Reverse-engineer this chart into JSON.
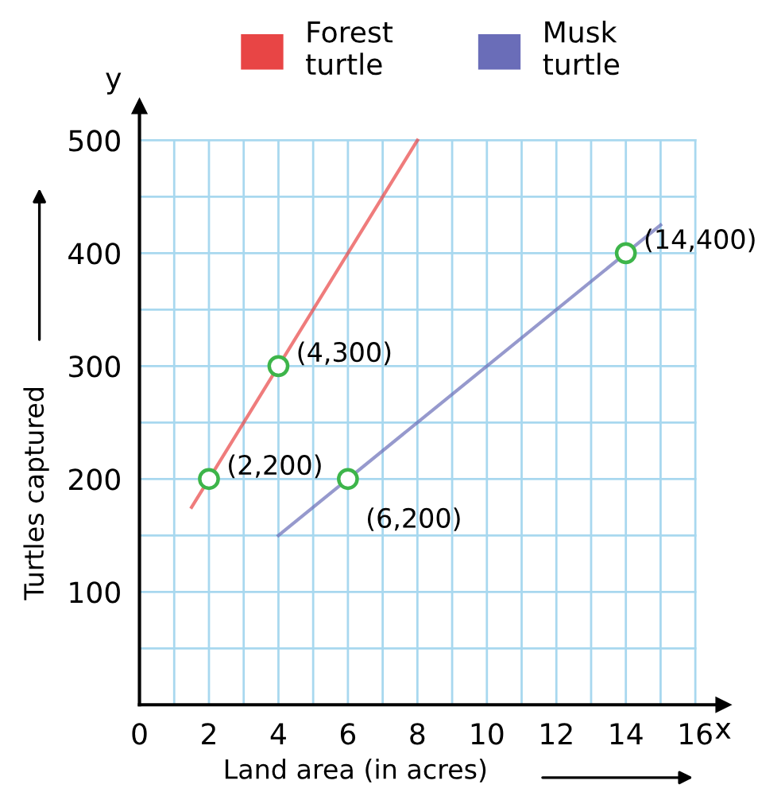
{
  "chart_data": {
    "type": "line",
    "xlabel": "Land area (in acres)",
    "ylabel": "Turtles captured",
    "series": [
      {
        "name": "Forest\nturtle",
        "color": "#e84545",
        "x": [
          1.5,
          8
        ],
        "values": [
          175,
          500
        ]
      },
      {
        "name": "Musk\nturtle",
        "color": "#6a6db8",
        "x": [
          4,
          15
        ],
        "values": [
          150,
          425
        ]
      },
      {
        "type": "scatter",
        "marker": "circle",
        "color": "#3db54a",
        "x": [
          2,
          4,
          6,
          14
        ],
        "values": [
          200,
          300,
          200,
          400
        ]
      }
    ],
    "xlim": [
      0,
      16.8
    ],
    "ylim": [
      0,
      530
    ],
    "xticks": [
      0,
      2,
      4,
      6,
      8,
      10,
      12,
      14,
      16
    ],
    "yticks": [
      100,
      200,
      300,
      400,
      500
    ],
    "grid": true,
    "legend": "top",
    "annotations": [
      {
        "text": "(2,200)",
        "x": 2,
        "y": 200
      },
      {
        "text": "(4,300)",
        "x": 4,
        "y": 300
      },
      {
        "text": "(6,200)",
        "x": 6,
        "y": 200
      },
      {
        "text": "(14,400)",
        "x": 14,
        "y": 400
      },
      "x",
      "y"
    ]
  }
}
